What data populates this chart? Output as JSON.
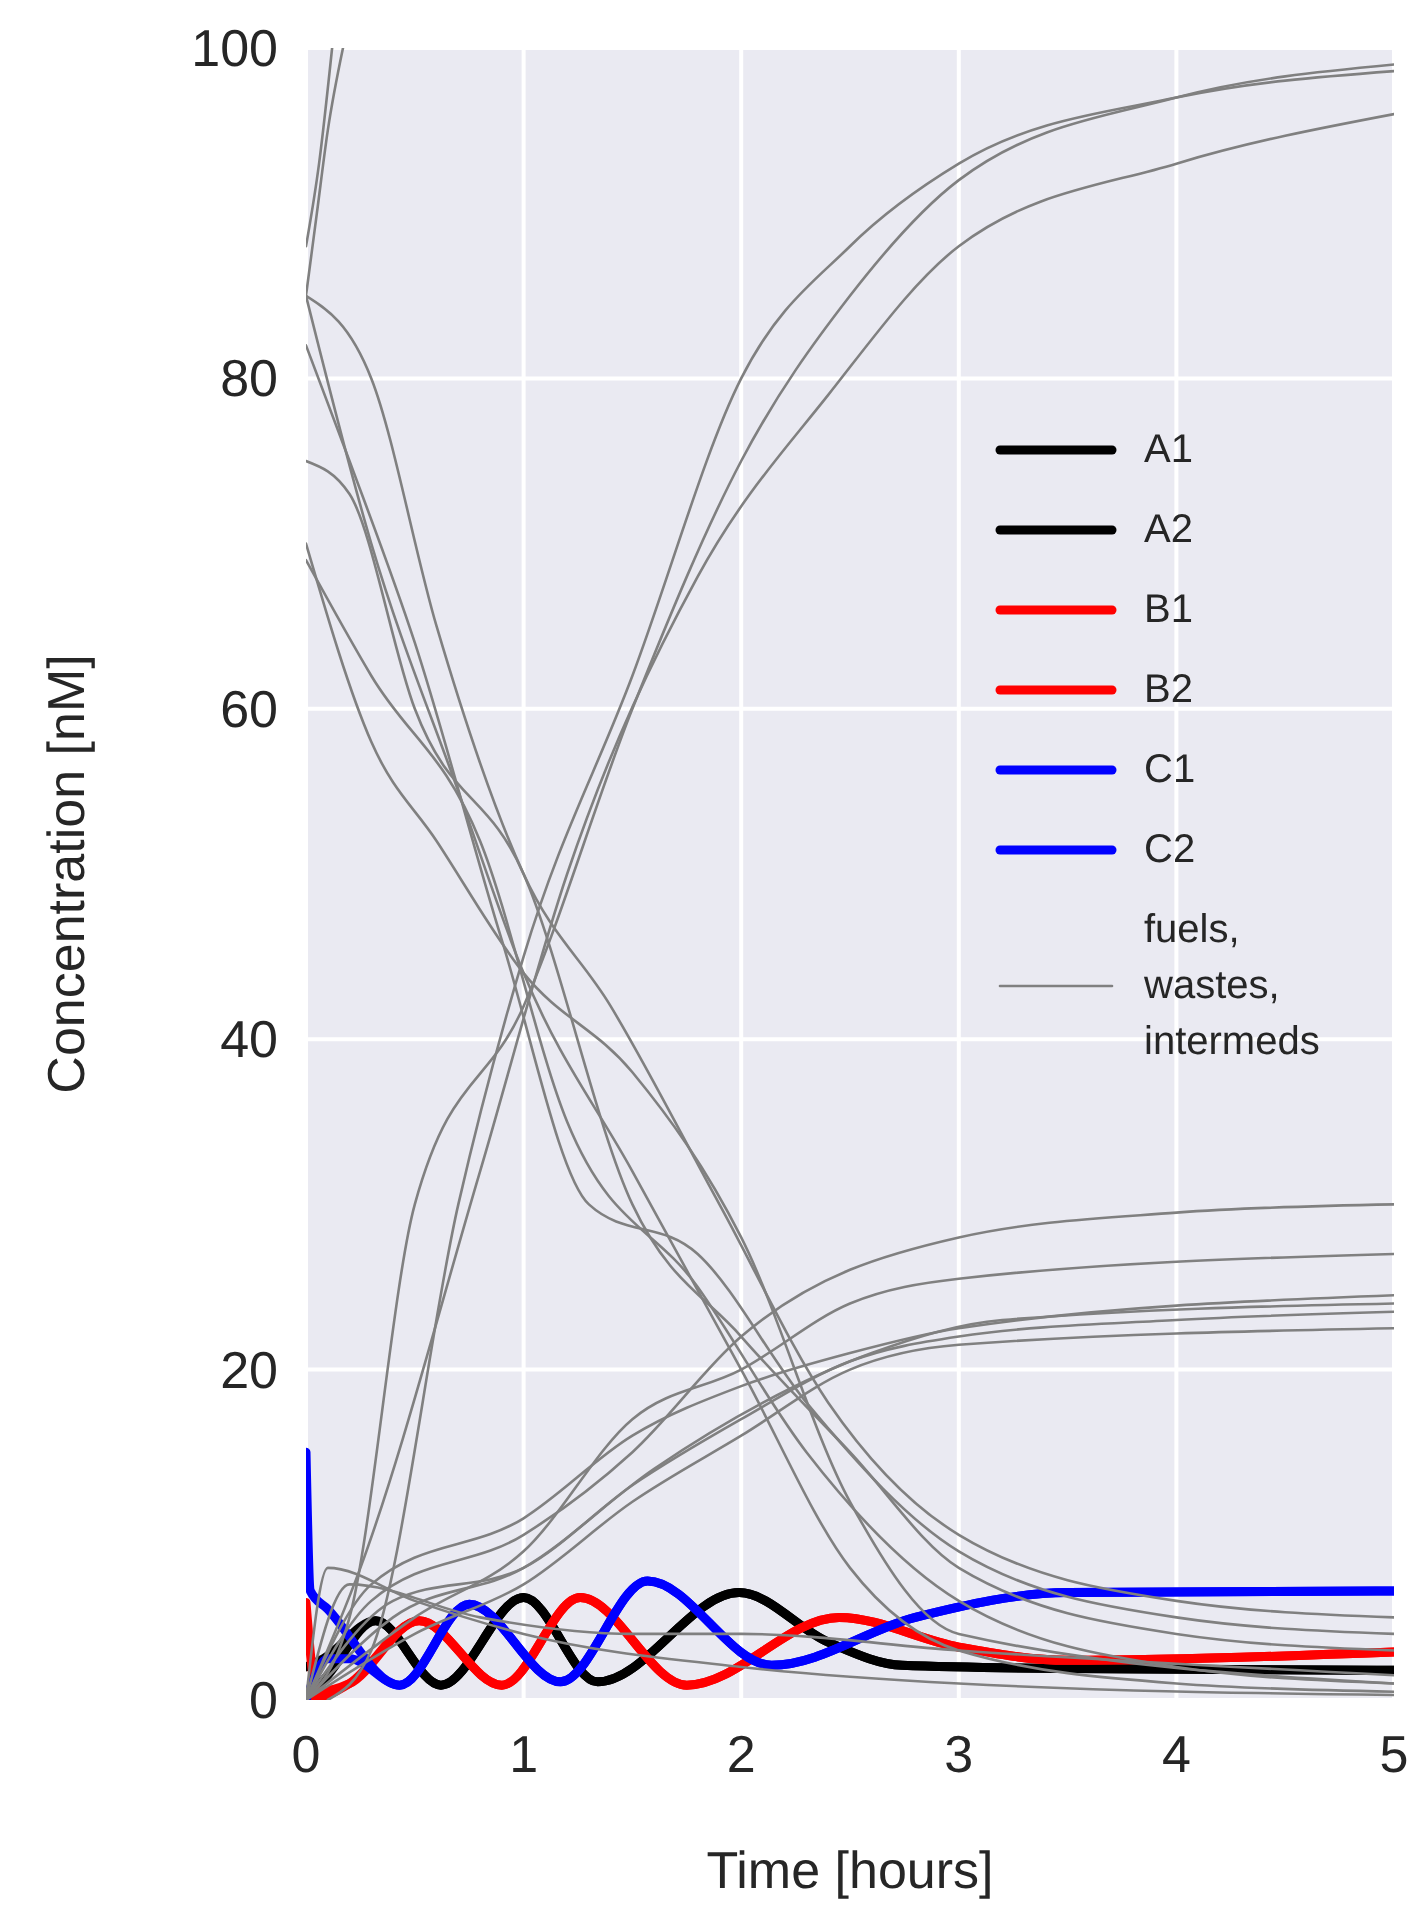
{
  "chart_data": {
    "type": "line",
    "xlabel": "Time [hours]",
    "ylabel": "Concentration [nM]",
    "xlim": [
      0,
      5
    ],
    "ylim": [
      0,
      100
    ],
    "xticks": [
      0,
      1,
      2,
      3,
      4,
      5
    ],
    "yticks": [
      0,
      20,
      40,
      60,
      80,
      100
    ],
    "grid": true,
    "legend": "right",
    "series": [
      {
        "name": "A1",
        "color": "#000000",
        "x": [
          0,
          0.1,
          0.32,
          0.62,
          1.0,
          1.34,
          1.99,
          2.4,
          2.74,
          3.5,
          5
        ],
        "values": [
          0,
          1.5,
          4.8,
          0.9,
          6.2,
          1.1,
          6.5,
          3.5,
          2.1,
          1.9,
          1.8
        ]
      },
      {
        "name": "A2",
        "color": "#000000",
        "x": [
          0,
          0.08,
          0.32,
          0.62,
          1.0,
          1.34,
          1.99,
          2.4,
          2.74,
          3.5,
          5
        ],
        "values": [
          2,
          2.5,
          4.8,
          0.9,
          6.2,
          1.1,
          6.5,
          3.5,
          2.1,
          1.9,
          1.8
        ]
      },
      {
        "name": "B1",
        "color": "#ff0000",
        "x": [
          0,
          0.05,
          0.2,
          0.52,
          0.9,
          1.26,
          1.75,
          2.45,
          3.0,
          3.5,
          5
        ],
        "values": [
          5.9,
          0.5,
          1,
          4.8,
          0.9,
          6.2,
          0.9,
          5.0,
          3.2,
          2.4,
          2.9
        ]
      },
      {
        "name": "B2",
        "color": "#ff0000",
        "x": [
          0,
          0.1,
          0.2,
          0.52,
          0.9,
          1.26,
          1.75,
          2.45,
          3.0,
          3.5,
          5
        ],
        "values": [
          0,
          0.3,
          1,
          4.8,
          0.9,
          6.2,
          0.9,
          5.0,
          3.2,
          2.4,
          2.9
        ]
      },
      {
        "name": "C1",
        "color": "#0000ff",
        "x": [
          0,
          0.02,
          0.1,
          0.43,
          0.75,
          1.17,
          1.57,
          2.14,
          2.8,
          3.5,
          5
        ],
        "values": [
          15,
          6.6,
          5.5,
          0.9,
          5.8,
          1.1,
          7.2,
          2.1,
          5.0,
          6.5,
          6.6
        ]
      },
      {
        "name": "C2",
        "color": "#0000ff",
        "x": [
          0,
          0.1,
          0.2,
          0.43,
          0.75,
          1.17,
          1.57,
          2.14,
          2.8,
          3.5,
          5
        ],
        "values": [
          0,
          2.5,
          2.5,
          0.9,
          5.8,
          1.1,
          7.2,
          2.1,
          5.0,
          6.5,
          6.6
        ]
      },
      {
        "name": "fuels, wastes, intermeds",
        "color": "#808080",
        "x": [
          0,
          0.05,
          0.1,
          0.17
        ],
        "values": [
          85,
          90,
          95,
          100
        ]
      },
      {
        "color": "#808080",
        "x": [
          0,
          0.06,
          0.12
        ],
        "values": [
          88,
          93,
          100
        ]
      },
      {
        "color": "#808080",
        "x": [
          0,
          0.2,
          0.5,
          1,
          1.5,
          2,
          2.5,
          3,
          4,
          5
        ],
        "values": [
          0,
          5,
          30,
          42,
          60,
          75,
          85,
          92,
          97,
          99
        ]
      },
      {
        "color": "#808080",
        "x": [
          0.1,
          0.3,
          0.7,
          1,
          1.5,
          2,
          2.5,
          3,
          4,
          5
        ],
        "values": [
          0,
          3,
          30,
          45,
          62,
          80,
          88,
          93,
          97,
          98.6
        ]
      },
      {
        "color": "#808080",
        "x": [
          0,
          0.25,
          0.8,
          1.2,
          1.8,
          2.4,
          3,
          4,
          5
        ],
        "values": [
          0,
          8,
          32,
          50,
          68,
          79,
          88,
          93,
          96
        ]
      },
      {
        "color": "#808080",
        "x": [
          0,
          0.3,
          0.7,
          1,
          1.5,
          2,
          2.5,
          3,
          4,
          5
        ],
        "values": [
          85,
          70,
          55,
          44,
          32,
          20,
          8,
          3,
          1,
          0.5
        ]
      },
      {
        "color": "#808080",
        "x": [
          0,
          0.2,
          0.5,
          1,
          1.5,
          2,
          2.5,
          3,
          4,
          5
        ],
        "values": [
          75,
          73,
          60,
          50,
          30,
          22,
          15,
          8,
          4,
          3
        ]
      },
      {
        "color": "#808080",
        "x": [
          0,
          0.3,
          0.8,
          1.2,
          1.8,
          2.3,
          3,
          4,
          5
        ],
        "values": [
          69,
          62,
          52,
          35,
          25,
          15,
          6,
          2,
          1
        ]
      },
      {
        "color": "#808080",
        "x": [
          0,
          0.2,
          0.5,
          0.9,
          1.3,
          1.8,
          2.3,
          3,
          4,
          5
        ],
        "values": [
          82,
          75,
          64,
          46,
          30,
          27,
          18,
          9,
          5,
          4
        ]
      },
      {
        "color": "#808080",
        "x": [
          0,
          0.3,
          0.6,
          1,
          1.5,
          2,
          2.5,
          3,
          5
        ],
        "values": [
          70,
          58,
          52,
          44,
          38,
          28,
          12,
          4,
          1
        ]
      },
      {
        "color": "#808080",
        "x": [
          0,
          0.3,
          0.6,
          1,
          1.4,
          1.9,
          2.4,
          3,
          4,
          5
        ],
        "values": [
          85,
          80,
          65,
          50,
          42,
          30,
          18,
          10,
          6,
          5
        ]
      },
      {
        "color": "#808080",
        "x": [
          0,
          0.3,
          1,
          1.5,
          2,
          3,
          4,
          5
        ],
        "values": [
          0,
          6,
          10,
          15,
          22,
          28,
          29.5,
          30
        ]
      },
      {
        "color": "#808080",
        "x": [
          0,
          0.5,
          1,
          1.5,
          2,
          2.5,
          3,
          5
        ],
        "values": [
          0,
          5,
          9,
          17,
          20,
          24,
          25.5,
          27
        ]
      },
      {
        "color": "#808080",
        "x": [
          0,
          0.4,
          1,
          1.5,
          2,
          2.5,
          3,
          4,
          5
        ],
        "values": [
          0,
          6,
          8,
          13,
          17,
          20.5,
          22,
          23,
          23.5
        ]
      },
      {
        "color": "#808080",
        "x": [
          0,
          0.3,
          1,
          1.5,
          2,
          2.5,
          3,
          5
        ],
        "values": [
          0,
          7,
          11,
          16,
          19,
          21,
          22.5,
          24.5
        ]
      },
      {
        "color": "#808080",
        "x": [
          0,
          0.5,
          1,
          1.5,
          2,
          2.5,
          3,
          5
        ],
        "values": [
          0,
          4,
          7,
          12,
          16,
          20,
          21.5,
          22.5
        ]
      },
      {
        "color": "#808080",
        "x": [
          0,
          0.4,
          1,
          1.6,
          2.1,
          2.6,
          3.2,
          5
        ],
        "values": [
          0,
          5,
          8,
          14,
          18,
          21,
          23,
          24
        ]
      },
      {
        "color": "#808080",
        "x": [
          0,
          0.1,
          0.5,
          1,
          2,
          3,
          5
        ],
        "values": [
          0,
          8,
          6,
          4,
          2,
          1,
          0.3
        ]
      },
      {
        "color": "#808080",
        "x": [
          0,
          0.2,
          0.8,
          1.5,
          2,
          3,
          5
        ],
        "values": [
          0,
          7,
          5,
          4,
          4,
          3,
          1.5
        ]
      }
    ]
  }
}
